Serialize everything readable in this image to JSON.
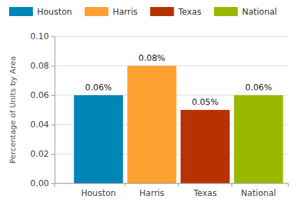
{
  "chart_data": {
    "type": "bar",
    "categories": [
      "Houston",
      "Harris",
      "Texas",
      "National"
    ],
    "values": [
      0.06,
      0.08,
      0.05,
      0.06
    ],
    "value_labels": [
      "0.06%",
      "0.08%",
      "0.05%",
      "0.06%"
    ],
    "colors": [
      "#0085b8",
      "#ffa033",
      "#b83200",
      "#99b800"
    ],
    "y_label": "Percentage of Units by Area",
    "ylim": [
      0,
      0.1
    ],
    "yticks": [
      {
        "value": 0,
        "label": "0.00"
      },
      {
        "value": 0.02,
        "label": "0.02"
      },
      {
        "value": 0.04,
        "label": "0.04"
      },
      {
        "value": 0.06,
        "label": "0.06"
      },
      {
        "value": 0.08,
        "label": "0.08"
      },
      {
        "value": 0.1,
        "label": "0.10"
      }
    ],
    "grid": true,
    "legend": "top",
    "data_labels": true
  }
}
